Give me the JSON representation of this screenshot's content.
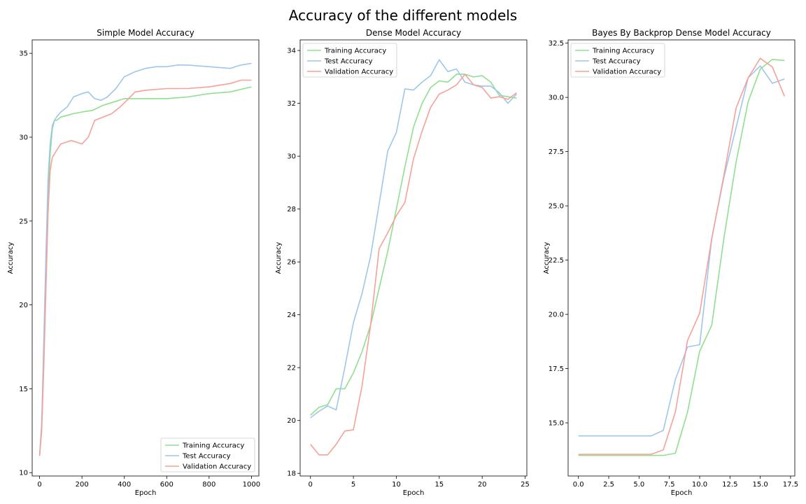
{
  "figure": {
    "title": "Accuracy of the different models"
  },
  "colors": {
    "training": "#8ee08e",
    "test": "#9ec6ec",
    "validation": "#f5a198"
  },
  "chart_data": [
    {
      "type": "line",
      "title": "Simple Model Accuracy",
      "xlabel": "Epoch",
      "ylabel": "Accuracy",
      "xlim": [
        -35,
        1035
      ],
      "ylim": [
        9.8,
        35.8
      ],
      "xticks": [
        0,
        200,
        400,
        600,
        800,
        1000
      ],
      "yticks": [
        10,
        15,
        20,
        25,
        30,
        35
      ],
      "tick_labels_x": [
        "0",
        "200",
        "400",
        "600",
        "800",
        "1000"
      ],
      "tick_labels_y": [
        "10",
        "15",
        "20",
        "25",
        "30",
        "35"
      ],
      "legend_position": "lower-right",
      "series": [
        {
          "name": "Training Accuracy",
          "color_key": "training",
          "x": [
            0,
            10,
            20,
            30,
            40,
            50,
            60,
            70,
            80,
            100,
            130,
            160,
            200,
            250,
            300,
            350,
            400,
            450,
            500,
            600,
            700,
            800,
            900,
            1000
          ],
          "y": [
            11.0,
            12.8,
            17.0,
            22.0,
            26.5,
            29.0,
            30.5,
            31.0,
            31.0,
            31.2,
            31.3,
            31.4,
            31.5,
            31.6,
            31.9,
            32.1,
            32.3,
            32.3,
            32.3,
            32.3,
            32.4,
            32.6,
            32.7,
            33.0
          ]
        },
        {
          "name": "Test Accuracy",
          "color_key": "test",
          "x": [
            0,
            10,
            20,
            30,
            40,
            50,
            60,
            70,
            80,
            100,
            130,
            160,
            200,
            230,
            260,
            290,
            320,
            360,
            400,
            450,
            500,
            550,
            600,
            650,
            700,
            800,
            900,
            950,
            1000
          ],
          "y": [
            11.0,
            13.0,
            18.0,
            23.0,
            27.5,
            29.6,
            30.7,
            31.0,
            31.2,
            31.5,
            31.8,
            32.4,
            32.6,
            32.7,
            32.3,
            32.2,
            32.4,
            32.9,
            33.6,
            33.9,
            34.1,
            34.2,
            34.2,
            34.3,
            34.3,
            34.2,
            34.1,
            34.3,
            34.4
          ]
        },
        {
          "name": "Validation Accuracy",
          "color_key": "validation",
          "x": [
            0,
            10,
            20,
            30,
            40,
            50,
            60,
            80,
            100,
            150,
            200,
            230,
            260,
            300,
            340,
            380,
            420,
            450,
            500,
            600,
            700,
            800,
            900,
            950,
            1000
          ],
          "y": [
            11.0,
            12.5,
            16.5,
            21.0,
            25.5,
            28.0,
            28.8,
            29.2,
            29.6,
            29.8,
            29.6,
            30.0,
            31.0,
            31.2,
            31.4,
            31.8,
            32.3,
            32.7,
            32.8,
            32.9,
            32.9,
            33.0,
            33.2,
            33.4,
            33.4
          ]
        }
      ]
    },
    {
      "type": "line",
      "title": "Dense Model Accuracy",
      "xlabel": "Epoch",
      "ylabel": "Accuracy",
      "xlim": [
        -1.2,
        25.2
      ],
      "ylim": [
        17.9,
        34.4
      ],
      "xticks": [
        0,
        5,
        10,
        15,
        20,
        25
      ],
      "yticks": [
        18,
        20,
        22,
        24,
        26,
        28,
        30,
        32,
        34
      ],
      "tick_labels_x": [
        "0",
        "5",
        "10",
        "15",
        "20",
        "25"
      ],
      "tick_labels_y": [
        "18",
        "20",
        "22",
        "24",
        "26",
        "28",
        "30",
        "32",
        "34"
      ],
      "legend_position": "upper-left",
      "series": [
        {
          "name": "Training Accuracy",
          "color_key": "training",
          "x": [
            0,
            1,
            2,
            3,
            4,
            5,
            6,
            7,
            8,
            9,
            10,
            11,
            12,
            13,
            14,
            15,
            16,
            17,
            18,
            19,
            20,
            21,
            22,
            23,
            24
          ],
          "y": [
            20.2,
            20.5,
            20.6,
            21.2,
            21.2,
            21.8,
            22.6,
            23.6,
            25.0,
            26.4,
            28.0,
            29.6,
            31.1,
            32.0,
            32.6,
            32.85,
            32.8,
            33.1,
            33.1,
            33.0,
            33.05,
            32.8,
            32.3,
            32.25,
            32.2
          ]
        },
        {
          "name": "Test Accuracy",
          "color_key": "test",
          "x": [
            0,
            1,
            2,
            3,
            4,
            5,
            6,
            7,
            8,
            9,
            10,
            11,
            12,
            13,
            14,
            15,
            16,
            17,
            18,
            19,
            20,
            21,
            22,
            23,
            24
          ],
          "y": [
            20.1,
            20.35,
            20.55,
            20.4,
            22.0,
            23.7,
            24.8,
            26.2,
            28.2,
            30.2,
            30.9,
            32.55,
            32.5,
            32.8,
            33.05,
            33.65,
            33.2,
            33.3,
            32.8,
            32.7,
            32.65,
            32.65,
            32.4,
            32.0,
            32.35
          ]
        },
        {
          "name": "Validation Accuracy",
          "color_key": "validation",
          "x": [
            0,
            1,
            2,
            3,
            4,
            5,
            6,
            7,
            8,
            9,
            10,
            11,
            12,
            13,
            14,
            15,
            16,
            17,
            18,
            19,
            20,
            21,
            22,
            23,
            24
          ],
          "y": [
            19.1,
            18.7,
            18.7,
            19.1,
            19.6,
            19.65,
            21.3,
            23.6,
            26.5,
            27.1,
            27.75,
            28.25,
            29.9,
            30.95,
            31.85,
            32.35,
            32.5,
            32.7,
            33.1,
            32.7,
            32.6,
            32.2,
            32.25,
            32.15,
            32.4
          ]
        }
      ]
    },
    {
      "type": "line",
      "title": "Bayes By Backprop Dense Model Accuracy",
      "xlabel": "Epoch",
      "ylabel": "Accuracy",
      "xlim": [
        -0.85,
        17.85
      ],
      "ylim": [
        12.55,
        32.65
      ],
      "xticks": [
        0,
        2.5,
        5,
        7.5,
        10,
        12.5,
        15,
        17.5
      ],
      "yticks": [
        15,
        17.5,
        20,
        22.5,
        25,
        27.5,
        30,
        32.5
      ],
      "tick_labels_x": [
        "0.0",
        "2.5",
        "5.0",
        "7.5",
        "10.0",
        "12.5",
        "15.0",
        "17.5"
      ],
      "tick_labels_y": [
        "15.0",
        "17.5",
        "20.0",
        "22.5",
        "25.0",
        "27.5",
        "30.0",
        "32.5"
      ],
      "legend_position": "upper-left",
      "series": [
        {
          "name": "Training Accuracy",
          "color_key": "training",
          "x": [
            0,
            1,
            2,
            3,
            4,
            5,
            6,
            7,
            8,
            9,
            10,
            11,
            12,
            13,
            14,
            15,
            16,
            17
          ],
          "y": [
            13.5,
            13.5,
            13.5,
            13.5,
            13.5,
            13.5,
            13.5,
            13.5,
            13.6,
            15.5,
            18.3,
            19.5,
            23.5,
            27.0,
            29.8,
            31.3,
            31.75,
            31.7
          ]
        },
        {
          "name": "Test Accuracy",
          "color_key": "test",
          "x": [
            0,
            1,
            2,
            3,
            4,
            5,
            6,
            7,
            8,
            9,
            10,
            11,
            12,
            13,
            14,
            15,
            16,
            17
          ],
          "y": [
            14.4,
            14.4,
            14.4,
            14.4,
            14.4,
            14.4,
            14.4,
            14.65,
            17.0,
            18.5,
            18.6,
            23.5,
            26.3,
            28.6,
            30.9,
            31.45,
            30.65,
            30.85
          ]
        },
        {
          "name": "Validation Accuracy",
          "color_key": "validation",
          "x": [
            0,
            1,
            2,
            3,
            4,
            5,
            6,
            7,
            8,
            9,
            10,
            11,
            12,
            13,
            14,
            15,
            16,
            17
          ],
          "y": [
            13.55,
            13.55,
            13.55,
            13.55,
            13.55,
            13.55,
            13.55,
            13.75,
            15.5,
            18.8,
            20.05,
            23.5,
            26.4,
            29.5,
            30.9,
            31.8,
            31.4,
            30.05
          ]
        }
      ]
    }
  ]
}
